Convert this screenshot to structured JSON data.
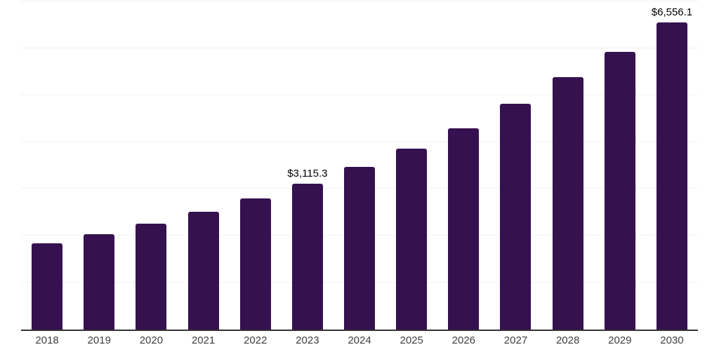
{
  "chart_data": {
    "type": "bar",
    "title": "",
    "xlabel": "",
    "ylabel": "",
    "categories": [
      "2018",
      "2019",
      "2020",
      "2021",
      "2022",
      "2023",
      "2024",
      "2025",
      "2026",
      "2027",
      "2028",
      "2029",
      "2030"
    ],
    "values": [
      1840,
      2040,
      2255,
      2510,
      2800,
      3115.3,
      3470,
      3860,
      4300,
      4810,
      5380,
      5920,
      6556.1
    ],
    "data_labels": {
      "2023": "$3,115.3",
      "2030": "$6,556.1"
    },
    "ylim": [
      0,
      7000
    ],
    "gridline_step": 1000,
    "grid": "horizontal, light, no y-axis tick labels",
    "legend_position": "none",
    "colors": {
      "bar": "#35114F",
      "axis_line": "#333333",
      "gridline": "#f2f2f2",
      "tick_label": "#404040",
      "data_label": "#000000",
      "background": "#ffffff"
    }
  }
}
